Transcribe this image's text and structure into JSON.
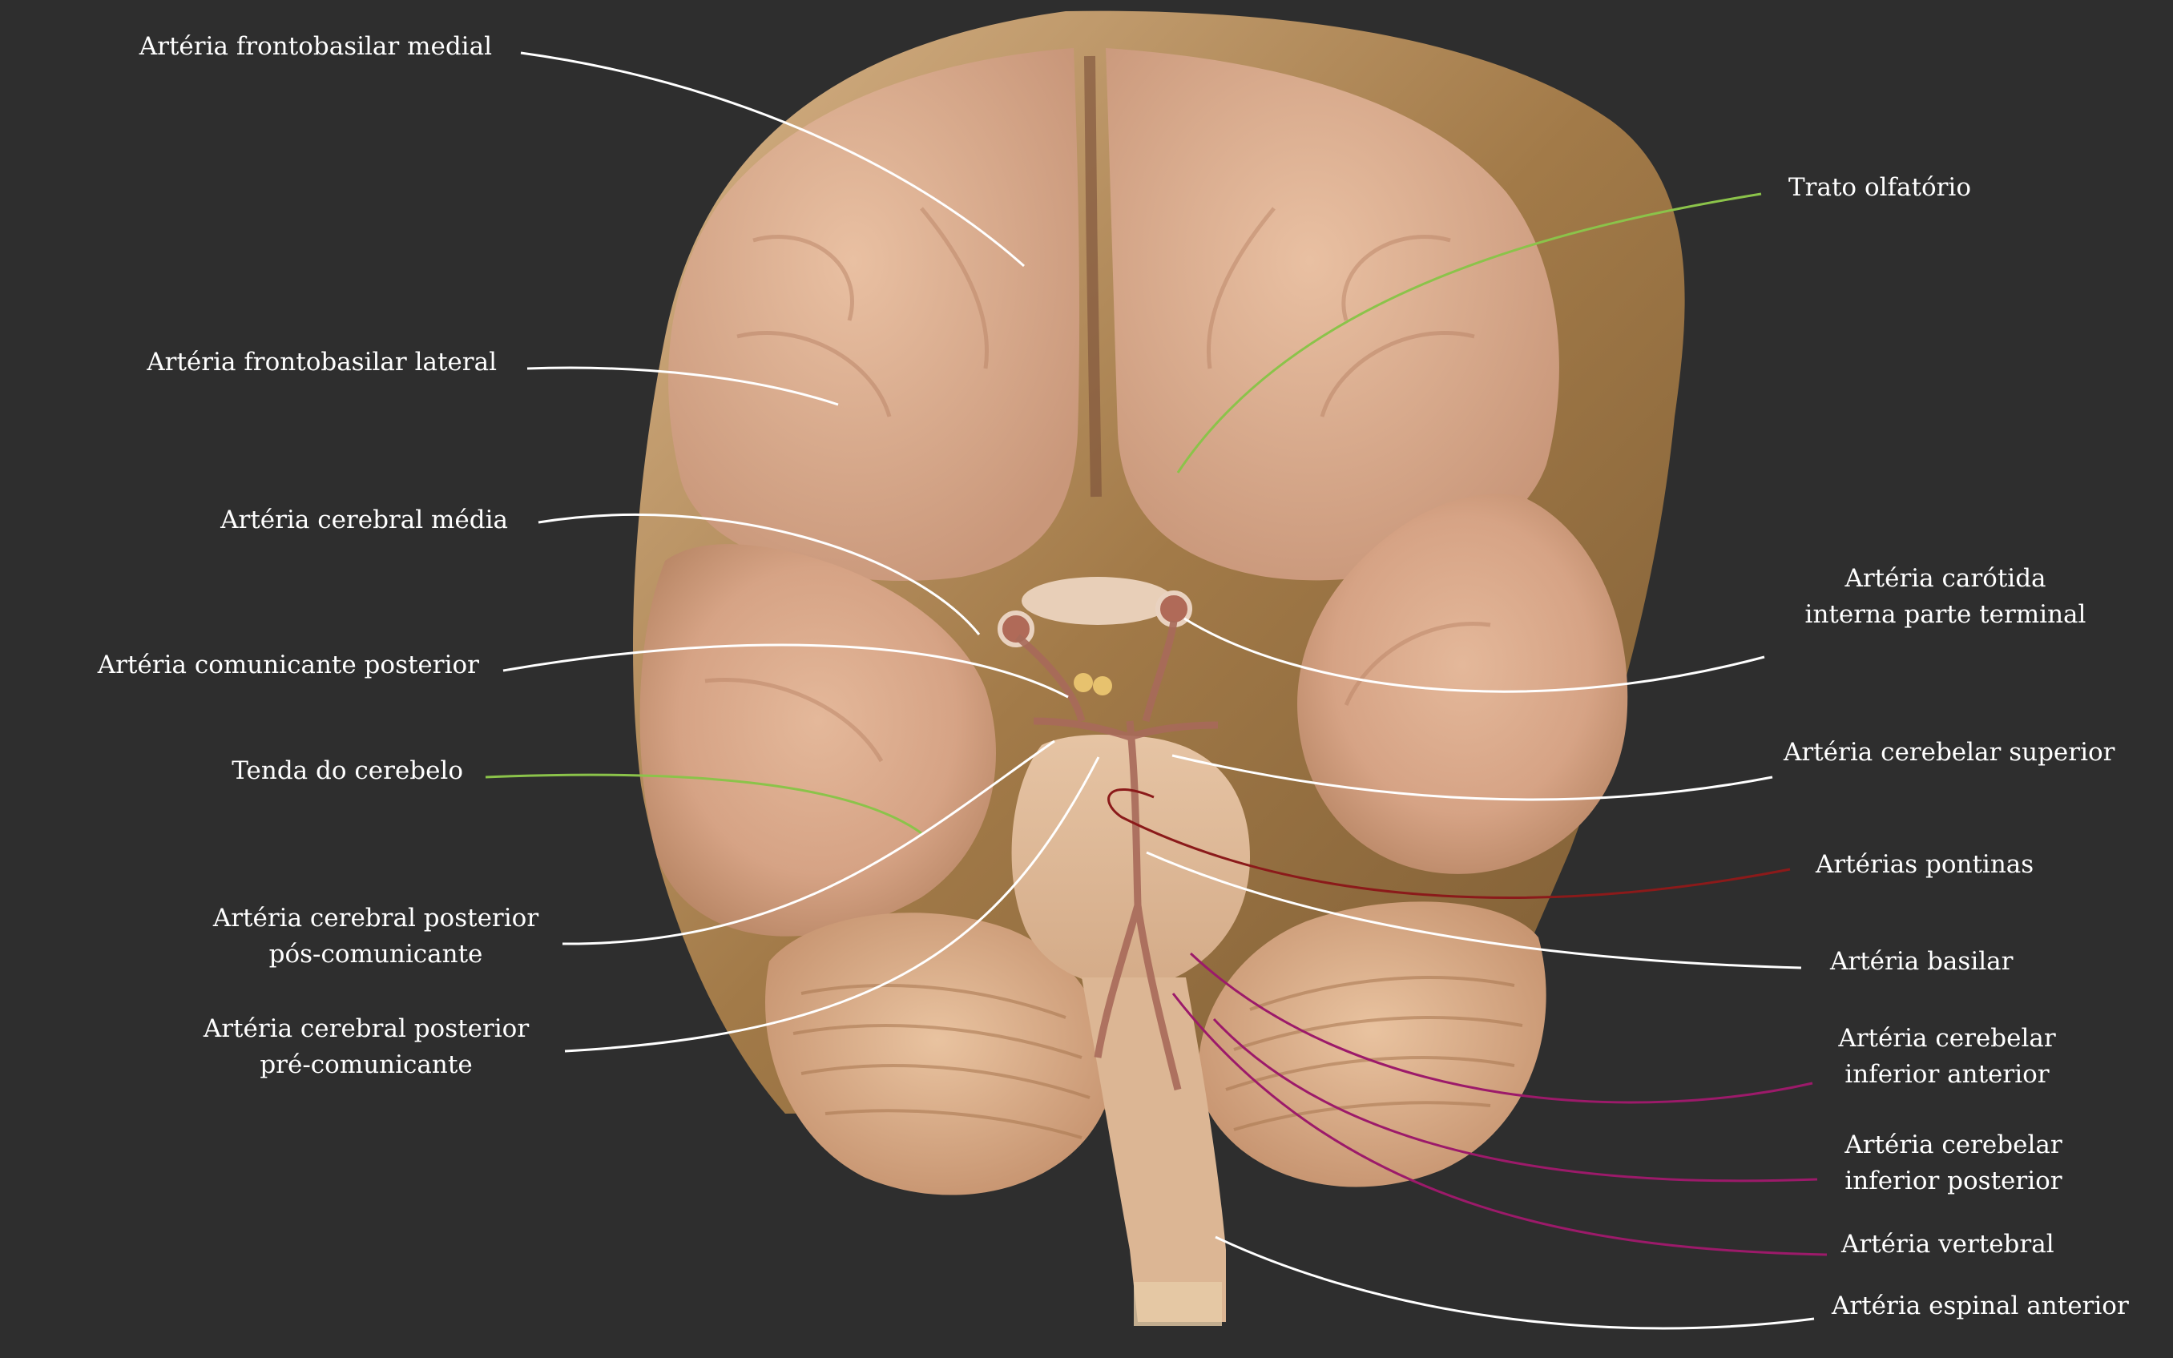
{
  "colors": {
    "background": "#2e2e2e",
    "label_text": "#ffffff",
    "leader_white": "#ffffff",
    "leader_green": "#8bc34a",
    "leader_red": "#8b1a1a",
    "leader_magenta": "#9c1a6a"
  },
  "labels": {
    "frontobasilar_medial": "Artéria frontobasilar medial",
    "frontobasilar_lateral": "Artéria frontobasilar lateral",
    "cerebral_media": "Artéria cerebral média",
    "comunicante_posterior": "Artéria comunicante posterior",
    "tenda_cerebelo": "Tenda do cerebelo",
    "cerebral_posterior_pos_line1": "Artéria cerebral posterior",
    "cerebral_posterior_pos_line2": "pós-comunicante",
    "cerebral_posterior_pre_line1": "Artéria cerebral posterior",
    "cerebral_posterior_pre_line2": "pré-comunicante",
    "trato_olfatorio": "Trato olfatório",
    "carotida_line1": "Artéria carótida",
    "carotida_line2": "interna parte terminal",
    "cerebelar_superior": "Artéria cerebelar superior",
    "pontinas": "Artérias pontinas",
    "basilar": "Artéria basilar",
    "cerebelar_inf_ant_line1": "Artéria cerebelar",
    "cerebelar_inf_ant_line2": "inferior anterior",
    "cerebelar_inf_post_line1": "Artéria cerebelar",
    "cerebelar_inf_post_line2": "inferior posterior",
    "vertebral": "Artéria vertebral",
    "espinal_anterior": "Artéria espinal anterior"
  }
}
